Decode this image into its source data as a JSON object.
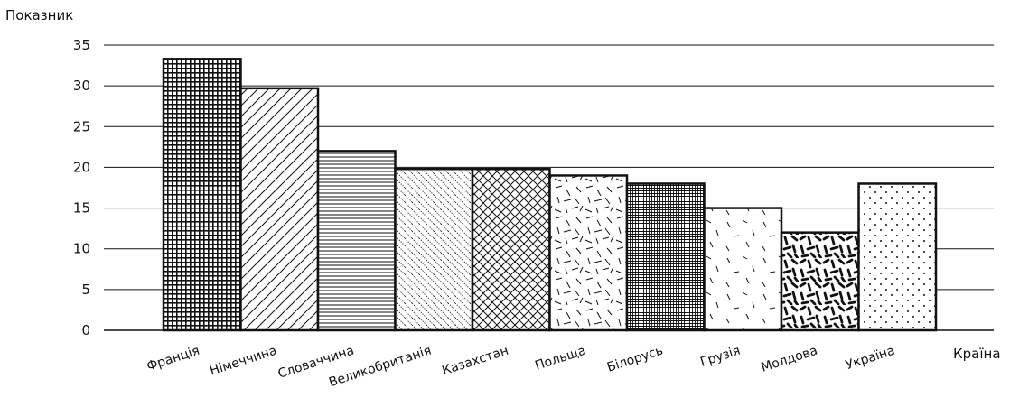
{
  "chart_data": {
    "type": "bar",
    "ylabel": "Показник",
    "xlabel": "Країна",
    "ylim": [
      0,
      35
    ],
    "yticks": [
      0,
      5,
      10,
      15,
      20,
      25,
      30,
      35
    ],
    "grid": true,
    "categories": [
      "Франція",
      "Німеччина",
      "Словаччина",
      "Великобританія",
      "Казахстан",
      "Польща",
      "Білорусь",
      "Грузія",
      "Молдова",
      "Україна"
    ],
    "values": [
      33.3,
      29.7,
      22,
      19.8,
      19.8,
      19,
      18,
      15,
      12,
      18
    ],
    "fill_patterns": [
      "fine-grid",
      "diagonal-up",
      "horizontal-lines",
      "diagonal-down-dotted",
      "crosshatch",
      "random-dashes",
      "dense-cross",
      "sparse-dashes",
      "thick-dashes",
      "dots"
    ]
  }
}
